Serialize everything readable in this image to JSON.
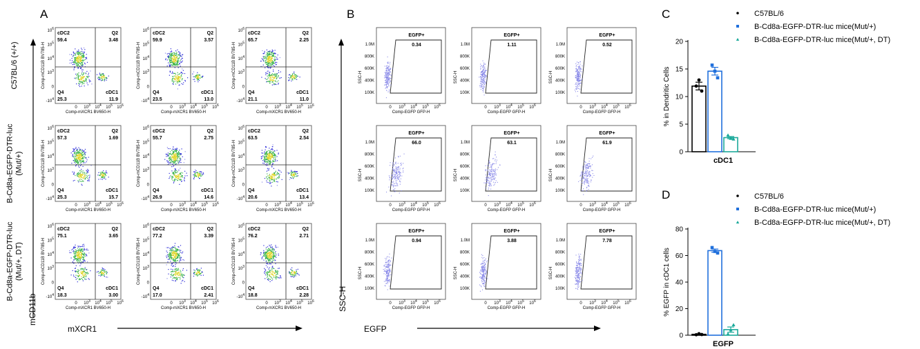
{
  "panels": {
    "A": "A",
    "B": "B",
    "C": "C",
    "D": "D"
  },
  "colors": {
    "group1": "#000000",
    "group2": "#1f6fdc",
    "group3": "#1aa99a",
    "density_low": "#2a2ad8",
    "density_mid": "#38b24a",
    "density_high": "#e0d62a",
    "dots_light": "#8a8ae8"
  },
  "panel_a": {
    "y_axis_title": "mCD11b",
    "x_axis_title": "mXCR1",
    "plot_x_label": "Comp-mXCR1 BV650-H",
    "plot_y_label": "Comp-mCD11B BV785-H",
    "quadrant_names": {
      "ul": "cDC2",
      "ur": "Q2",
      "ll": "Q4",
      "lr": "cDC1"
    },
    "rows": [
      {
        "label_lines": [
          "C57BL/6 (+/+)"
        ],
        "plots": [
          {
            "ul": "59.4",
            "ur": "3.48",
            "ll": "25.3",
            "lr": "11.9"
          },
          {
            "ul": "59.9",
            "ur": "3.57",
            "ll": "23.5",
            "lr": "13.0"
          },
          {
            "ul": "65.7",
            "ur": "2.25",
            "ll": "21.1",
            "lr": "11.0"
          }
        ]
      },
      {
        "label_lines": [
          "B-Cd8a-EGFP-DTR-luc",
          "(Mut/+)"
        ],
        "plots": [
          {
            "ul": "57.3",
            "ur": "1.69",
            "ll": "25.3",
            "lr": "15.7"
          },
          {
            "ul": "55.7",
            "ur": "2.75",
            "ll": "26.9",
            "lr": "14.6"
          },
          {
            "ul": "63.5",
            "ur": "2.54",
            "ll": "20.6",
            "lr": "13.4"
          }
        ]
      },
      {
        "label_lines": [
          "B-Cd8a-EGFP-DTR-luc",
          "(Mut/+, DT)"
        ],
        "plots": [
          {
            "ul": "75.1",
            "ur": "3.65",
            "ll": "18.3",
            "lr": "3.00"
          },
          {
            "ul": "77.2",
            "ur": "3.39",
            "ll": "17.0",
            "lr": "2.41"
          },
          {
            "ul": "76.2",
            "ur": "2.71",
            "ll": "18.8",
            "lr": "2.28"
          }
        ]
      }
    ],
    "x_ticks": [
      "0",
      "10^3",
      "10^4",
      "10^5",
      "10^6"
    ],
    "y_ticks": [
      "10^6",
      "10^5",
      "10^4",
      "10^3",
      "0",
      "-10^4"
    ]
  },
  "panel_b": {
    "y_axis_title": "SSC-H",
    "x_axis_title": "EGFP",
    "plot_x_label": "Comp-EGFP GFP-H",
    "plot_y_label": "SSC-H",
    "gate_name": "EGFP+",
    "y_ticks": [
      "1.0M",
      "800K",
      "600K",
      "400K",
      "100K"
    ],
    "x_ticks": [
      "0",
      "10^3",
      "10^4",
      "10^5",
      "10^6"
    ],
    "rows": [
      [
        "0.34",
        "1.11",
        "0.52"
      ],
      [
        "66.0",
        "63.1",
        "61.9"
      ],
      [
        "0.94",
        "3.88",
        "7.78"
      ]
    ]
  },
  "chart_data": [
    {
      "id": "C",
      "type": "bar",
      "ylabel": "% in Dendritic Cells",
      "xlabel": "cDC1",
      "ylim": [
        0,
        20
      ],
      "yticks": [
        0,
        5,
        10,
        15,
        20
      ],
      "legend_position": "top-right",
      "series": [
        {
          "name": "C57BL/6",
          "mean": 11.9,
          "sem": 0.7,
          "points": [
            11.9,
            13.0,
            11.0
          ]
        },
        {
          "name": "B-Cd8a-EGFP-DTR-luc mice(Mut/+)",
          "mean": 14.6,
          "sem": 0.7,
          "points": [
            15.7,
            14.6,
            13.4
          ]
        },
        {
          "name": "B-Cd8a-EGFP-DTR-luc mice(Mut/+, DT)",
          "mean": 2.56,
          "sem": 0.2,
          "points": [
            3.0,
            2.41,
            2.28
          ]
        }
      ]
    },
    {
      "id": "D",
      "type": "bar",
      "ylabel": "% EGFP in cDC1 cells",
      "xlabel": "EGFP",
      "ylim": [
        0,
        80
      ],
      "yticks": [
        0,
        20,
        40,
        60,
        80
      ],
      "legend_position": "top-right",
      "series": [
        {
          "name": "C57BL/6",
          "mean": 0.66,
          "sem": 0.2,
          "points": [
            0.34,
            1.11,
            0.52
          ]
        },
        {
          "name": "B-Cd8a-EGFP-DTR-luc mice(Mut/+)",
          "mean": 63.7,
          "sem": 1.2,
          "points": [
            66.0,
            63.1,
            61.9
          ]
        },
        {
          "name": "B-Cd8a-EGFP-DTR-luc mice(Mut/+, DT)",
          "mean": 4.2,
          "sem": 2.0,
          "points": [
            0.94,
            3.88,
            7.78
          ]
        }
      ]
    }
  ]
}
